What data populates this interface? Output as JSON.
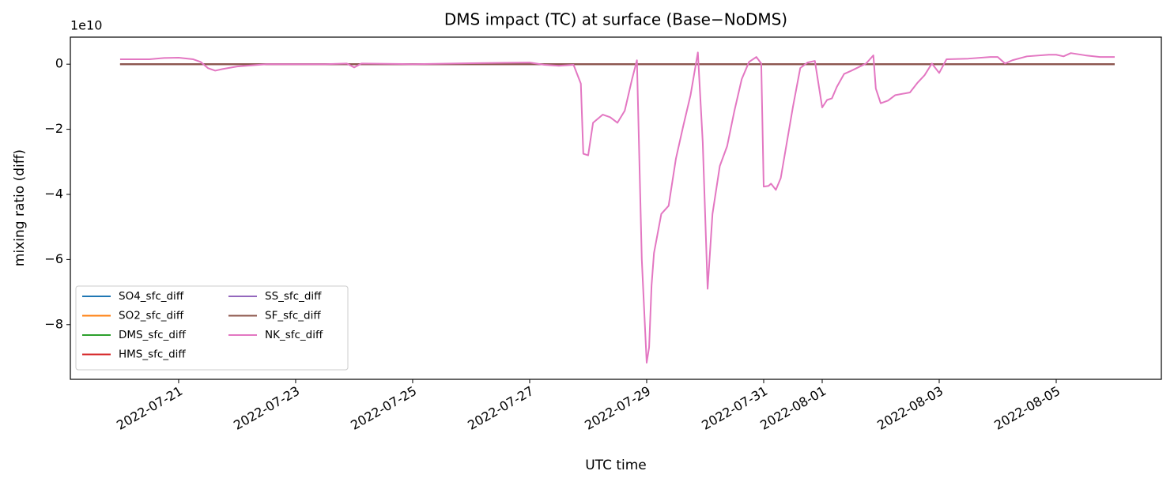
{
  "chart_data": {
    "type": "line",
    "title": "DMS impact (TC) at surface (Base−NoDMS)",
    "x_label": "UTC time",
    "y_label": "mixing ratio (diff)",
    "y_scale_label": "1e10",
    "legend": "lower left",
    "legend_columns": 2,
    "grid": false,
    "x": [
      "2022-07-20T00:00",
      "2022-07-20T12:00",
      "2022-07-20T18:00",
      "2022-07-21T00:00",
      "2022-07-21T06:00",
      "2022-07-21T09:00",
      "2022-07-21T12:00",
      "2022-07-21T15:00",
      "2022-07-21T18:00",
      "2022-07-22T00:00",
      "2022-07-22T12:00",
      "2022-07-23T12:00",
      "2022-07-23T21:00",
      "2022-07-24T00:00",
      "2022-07-24T03:00",
      "2022-07-25T00:00",
      "2022-07-26T00:00",
      "2022-07-27T00:00",
      "2022-07-27T06:00",
      "2022-07-27T12:00",
      "2022-07-27T18:00",
      "2022-07-27T21:00",
      "2022-07-27T22:00",
      "2022-07-28T00:00",
      "2022-07-28T02:00",
      "2022-07-28T06:00",
      "2022-07-28T09:00",
      "2022-07-28T12:00",
      "2022-07-28T15:00",
      "2022-07-28T18:00",
      "2022-07-28T20:00",
      "2022-07-28T22:00",
      "2022-07-29T00:00",
      "2022-07-29T01:00",
      "2022-07-29T02:00",
      "2022-07-29T03:00",
      "2022-07-29T06:00",
      "2022-07-29T09:00",
      "2022-07-29T12:00",
      "2022-07-29T15:00",
      "2022-07-29T18:00",
      "2022-07-29T21:00",
      "2022-07-29T23:00",
      "2022-07-30T01:00",
      "2022-07-30T03:00",
      "2022-07-30T06:00",
      "2022-07-30T09:00",
      "2022-07-30T12:00",
      "2022-07-30T15:00",
      "2022-07-30T18:00",
      "2022-07-30T21:00",
      "2022-07-30T23:00",
      "2022-07-31T00:00",
      "2022-07-31T02:00",
      "2022-07-31T03:00",
      "2022-07-31T05:00",
      "2022-07-31T07:00",
      "2022-07-31T12:00",
      "2022-07-31T15:00",
      "2022-07-31T18:00",
      "2022-07-31T21:00",
      "2022-08-01T00:00",
      "2022-08-01T02:00",
      "2022-08-01T04:00",
      "2022-08-01T06:00",
      "2022-08-01T09:00",
      "2022-08-01T12:00",
      "2022-08-01T18:00",
      "2022-08-01T21:00",
      "2022-08-01T22:00",
      "2022-08-02T00:00",
      "2022-08-02T03:00",
      "2022-08-02T06:00",
      "2022-08-02T12:00",
      "2022-08-02T15:00",
      "2022-08-02T18:00",
      "2022-08-02T21:00",
      "2022-08-03T00:00",
      "2022-08-03T03:00",
      "2022-08-03T12:00",
      "2022-08-03T21:00",
      "2022-08-04T00:00",
      "2022-08-04T03:00",
      "2022-08-04T06:00",
      "2022-08-04T12:00",
      "2022-08-04T21:00",
      "2022-08-05T00:00",
      "2022-08-05T03:00",
      "2022-08-05T06:00",
      "2022-08-05T12:00",
      "2022-08-05T18:00",
      "2022-08-06T00:00"
    ],
    "xlim": [
      "2022-07-19T03:35",
      "2022-08-06T19:08"
    ],
    "xticks": [
      "2022-07-21",
      "2022-07-23",
      "2022-07-25",
      "2022-07-27",
      "2022-07-29",
      "2022-07-31",
      "2022-08-01",
      "2022-08-03",
      "2022-08-05"
    ],
    "ylim": [
      -9.68,
      0.83
    ],
    "yticks": [
      {
        "value": -8,
        "label": "−8"
      },
      {
        "value": -6,
        "label": "−6"
      },
      {
        "value": -4,
        "label": "−4"
      },
      {
        "value": -2,
        "label": "−2"
      },
      0
    ],
    "series": [
      {
        "name": "SO4_sfc_diff",
        "color": "#1f77b4",
        "values": [
          0,
          0,
          0,
          0,
          0,
          0,
          0,
          0,
          0,
          0,
          0,
          0,
          0,
          0,
          0,
          0,
          0,
          0,
          0,
          0,
          0,
          0,
          0,
          0,
          0,
          0,
          0,
          0,
          0,
          0,
          0,
          0,
          0,
          0,
          0,
          0,
          0,
          0,
          0,
          0,
          0,
          0,
          0,
          0,
          0,
          0,
          0,
          0,
          0,
          0,
          0,
          0,
          0,
          0,
          0,
          0,
          0,
          0,
          0,
          0,
          0,
          0,
          0,
          0,
          0,
          0,
          0,
          0,
          0,
          0,
          0,
          0,
          0,
          0,
          0,
          0,
          0,
          0,
          0,
          0,
          0,
          0,
          0,
          0,
          0,
          0,
          0,
          0,
          0,
          0,
          0,
          0
        ]
      },
      {
        "name": "SO2_sfc_diff",
        "color": "#ff7f0e",
        "values": [
          0,
          0,
          0,
          0,
          0,
          0,
          0,
          0,
          0,
          0,
          0,
          0,
          0,
          0,
          0,
          0,
          0,
          0,
          0,
          0,
          0,
          0,
          0,
          0,
          0,
          0,
          0,
          0,
          0,
          0,
          0,
          0,
          0,
          0,
          0,
          0,
          0,
          0,
          0,
          0,
          0,
          0,
          0,
          0,
          0,
          0,
          0,
          0,
          0,
          0,
          0,
          0,
          0,
          0,
          0,
          0,
          0,
          0,
          0,
          0,
          0,
          0,
          0,
          0,
          0,
          0,
          0,
          0,
          0,
          0,
          0,
          0,
          0,
          0,
          0,
          0,
          0,
          0,
          0,
          0,
          0,
          0,
          0,
          0,
          0,
          0,
          0,
          0,
          0,
          0,
          0,
          0
        ]
      },
      {
        "name": "DMS_sfc_diff",
        "color": "#2ca02c",
        "values": [
          0,
          0,
          0,
          0,
          0,
          0,
          0,
          0,
          0,
          0,
          0,
          0,
          0,
          0,
          0,
          0,
          0,
          0,
          0,
          0,
          0,
          0,
          0,
          0,
          0,
          0,
          0,
          0,
          0,
          0,
          0,
          0,
          0,
          0,
          0,
          0,
          0,
          0,
          0,
          0,
          0,
          0,
          0,
          0,
          0,
          0,
          0,
          0,
          0,
          0,
          0,
          0,
          0,
          0,
          0,
          0,
          0,
          0,
          0,
          0,
          0,
          0,
          0,
          0,
          0,
          0,
          0,
          0,
          0,
          0,
          0,
          0,
          0,
          0,
          0,
          0,
          0,
          0,
          0,
          0,
          0,
          0,
          0,
          0,
          0,
          0,
          0,
          0,
          0,
          0,
          0,
          0
        ]
      },
      {
        "name": "HMS_sfc_diff",
        "color": "#d62728",
        "values": [
          0,
          0,
          0,
          0,
          0,
          0,
          0,
          0,
          0,
          0,
          0,
          0,
          0,
          0,
          0,
          0,
          0,
          0,
          0,
          0,
          0,
          0,
          0,
          0,
          0,
          0,
          0,
          0,
          0,
          0,
          0,
          0,
          0,
          0,
          0,
          0,
          0,
          0,
          0,
          0,
          0,
          0,
          0,
          0,
          0,
          0,
          0,
          0,
          0,
          0,
          0,
          0,
          0,
          0,
          0,
          0,
          0,
          0,
          0,
          0,
          0,
          0,
          0,
          0,
          0,
          0,
          0,
          0,
          0,
          0,
          0,
          0,
          0,
          0,
          0,
          0,
          0,
          0,
          0,
          0,
          0,
          0,
          0,
          0,
          0,
          0,
          0,
          0,
          0,
          0,
          0,
          0
        ]
      },
      {
        "name": "SS_sfc_diff",
        "color": "#9467bd",
        "values": [
          0,
          0,
          0,
          0,
          0,
          0,
          0,
          0,
          0,
          0,
          0,
          0,
          0,
          0,
          0,
          0,
          0,
          0,
          0,
          0,
          0,
          0,
          0,
          0,
          0,
          0,
          0,
          0,
          0,
          0,
          0,
          0,
          0,
          0,
          0,
          0,
          0,
          0,
          0,
          0,
          0,
          0,
          0,
          0,
          0,
          0,
          0,
          0,
          0,
          0,
          0,
          0,
          0,
          0,
          0,
          0,
          0,
          0,
          0,
          0,
          0,
          0,
          0,
          0,
          0,
          0,
          0,
          0,
          0,
          0,
          0,
          0,
          0,
          0,
          0,
          0,
          0,
          0,
          0,
          0,
          0,
          0,
          0,
          0,
          0,
          0,
          0,
          0,
          0,
          0,
          0,
          0
        ]
      },
      {
        "name": "SF_sfc_diff",
        "color": "#8c564b",
        "values": [
          0,
          0,
          0,
          0,
          0,
          0,
          0,
          0,
          0,
          0,
          0,
          0,
          0,
          0,
          0,
          0,
          0,
          0,
          0,
          0,
          0,
          0,
          0,
          0,
          0,
          0,
          0,
          0,
          0,
          0,
          0,
          0,
          0,
          0,
          0,
          0,
          0,
          0,
          0,
          0,
          0,
          0,
          0,
          0,
          0,
          0,
          0,
          0,
          0,
          0,
          0,
          0,
          0,
          0,
          0,
          0,
          0,
          0,
          0,
          0,
          0,
          0,
          0,
          0,
          0,
          0,
          0,
          0,
          0,
          0,
          0,
          0,
          0,
          0,
          0,
          0,
          0,
          0,
          0,
          0,
          0,
          0,
          0,
          0,
          0,
          0,
          0,
          0,
          0,
          0,
          0,
          0
        ]
      },
      {
        "name": "NK_sfc_diff",
        "color": "#e377c2",
        "values": [
          0.15,
          0.15,
          0.19,
          0.2,
          0.15,
          0.07,
          -0.12,
          -0.2,
          -0.15,
          -0.07,
          0,
          0,
          0.02,
          -0.1,
          0.02,
          0,
          0.03,
          0.05,
          -0.02,
          -0.05,
          -0.02,
          -0.6,
          -2.75,
          -2.8,
          -1.8,
          -1.55,
          -1.63,
          -1.8,
          -1.43,
          -0.46,
          0.12,
          -6.0,
          -9.17,
          -8.7,
          -6.8,
          -5.8,
          -4.6,
          -4.35,
          -2.9,
          -1.9,
          -0.95,
          0.36,
          -2.4,
          -6.9,
          -4.6,
          -3.13,
          -2.52,
          -1.43,
          -0.46,
          0.07,
          0.22,
          0.02,
          -3.76,
          -3.74,
          -3.67,
          -3.86,
          -3.5,
          -1.31,
          -0.12,
          0.05,
          0.1,
          -1.33,
          -1.1,
          -1.05,
          -0.7,
          -0.3,
          -0.2,
          0.02,
          0.27,
          -0.75,
          -1.2,
          -1.12,
          -0.95,
          -0.87,
          -0.58,
          -0.34,
          0.02,
          -0.27,
          0.15,
          0.17,
          0.22,
          0.22,
          0.02,
          0.12,
          0.24,
          0.29,
          0.29,
          0.24,
          0.34,
          0.27,
          0.22,
          0.22
        ]
      }
    ]
  }
}
